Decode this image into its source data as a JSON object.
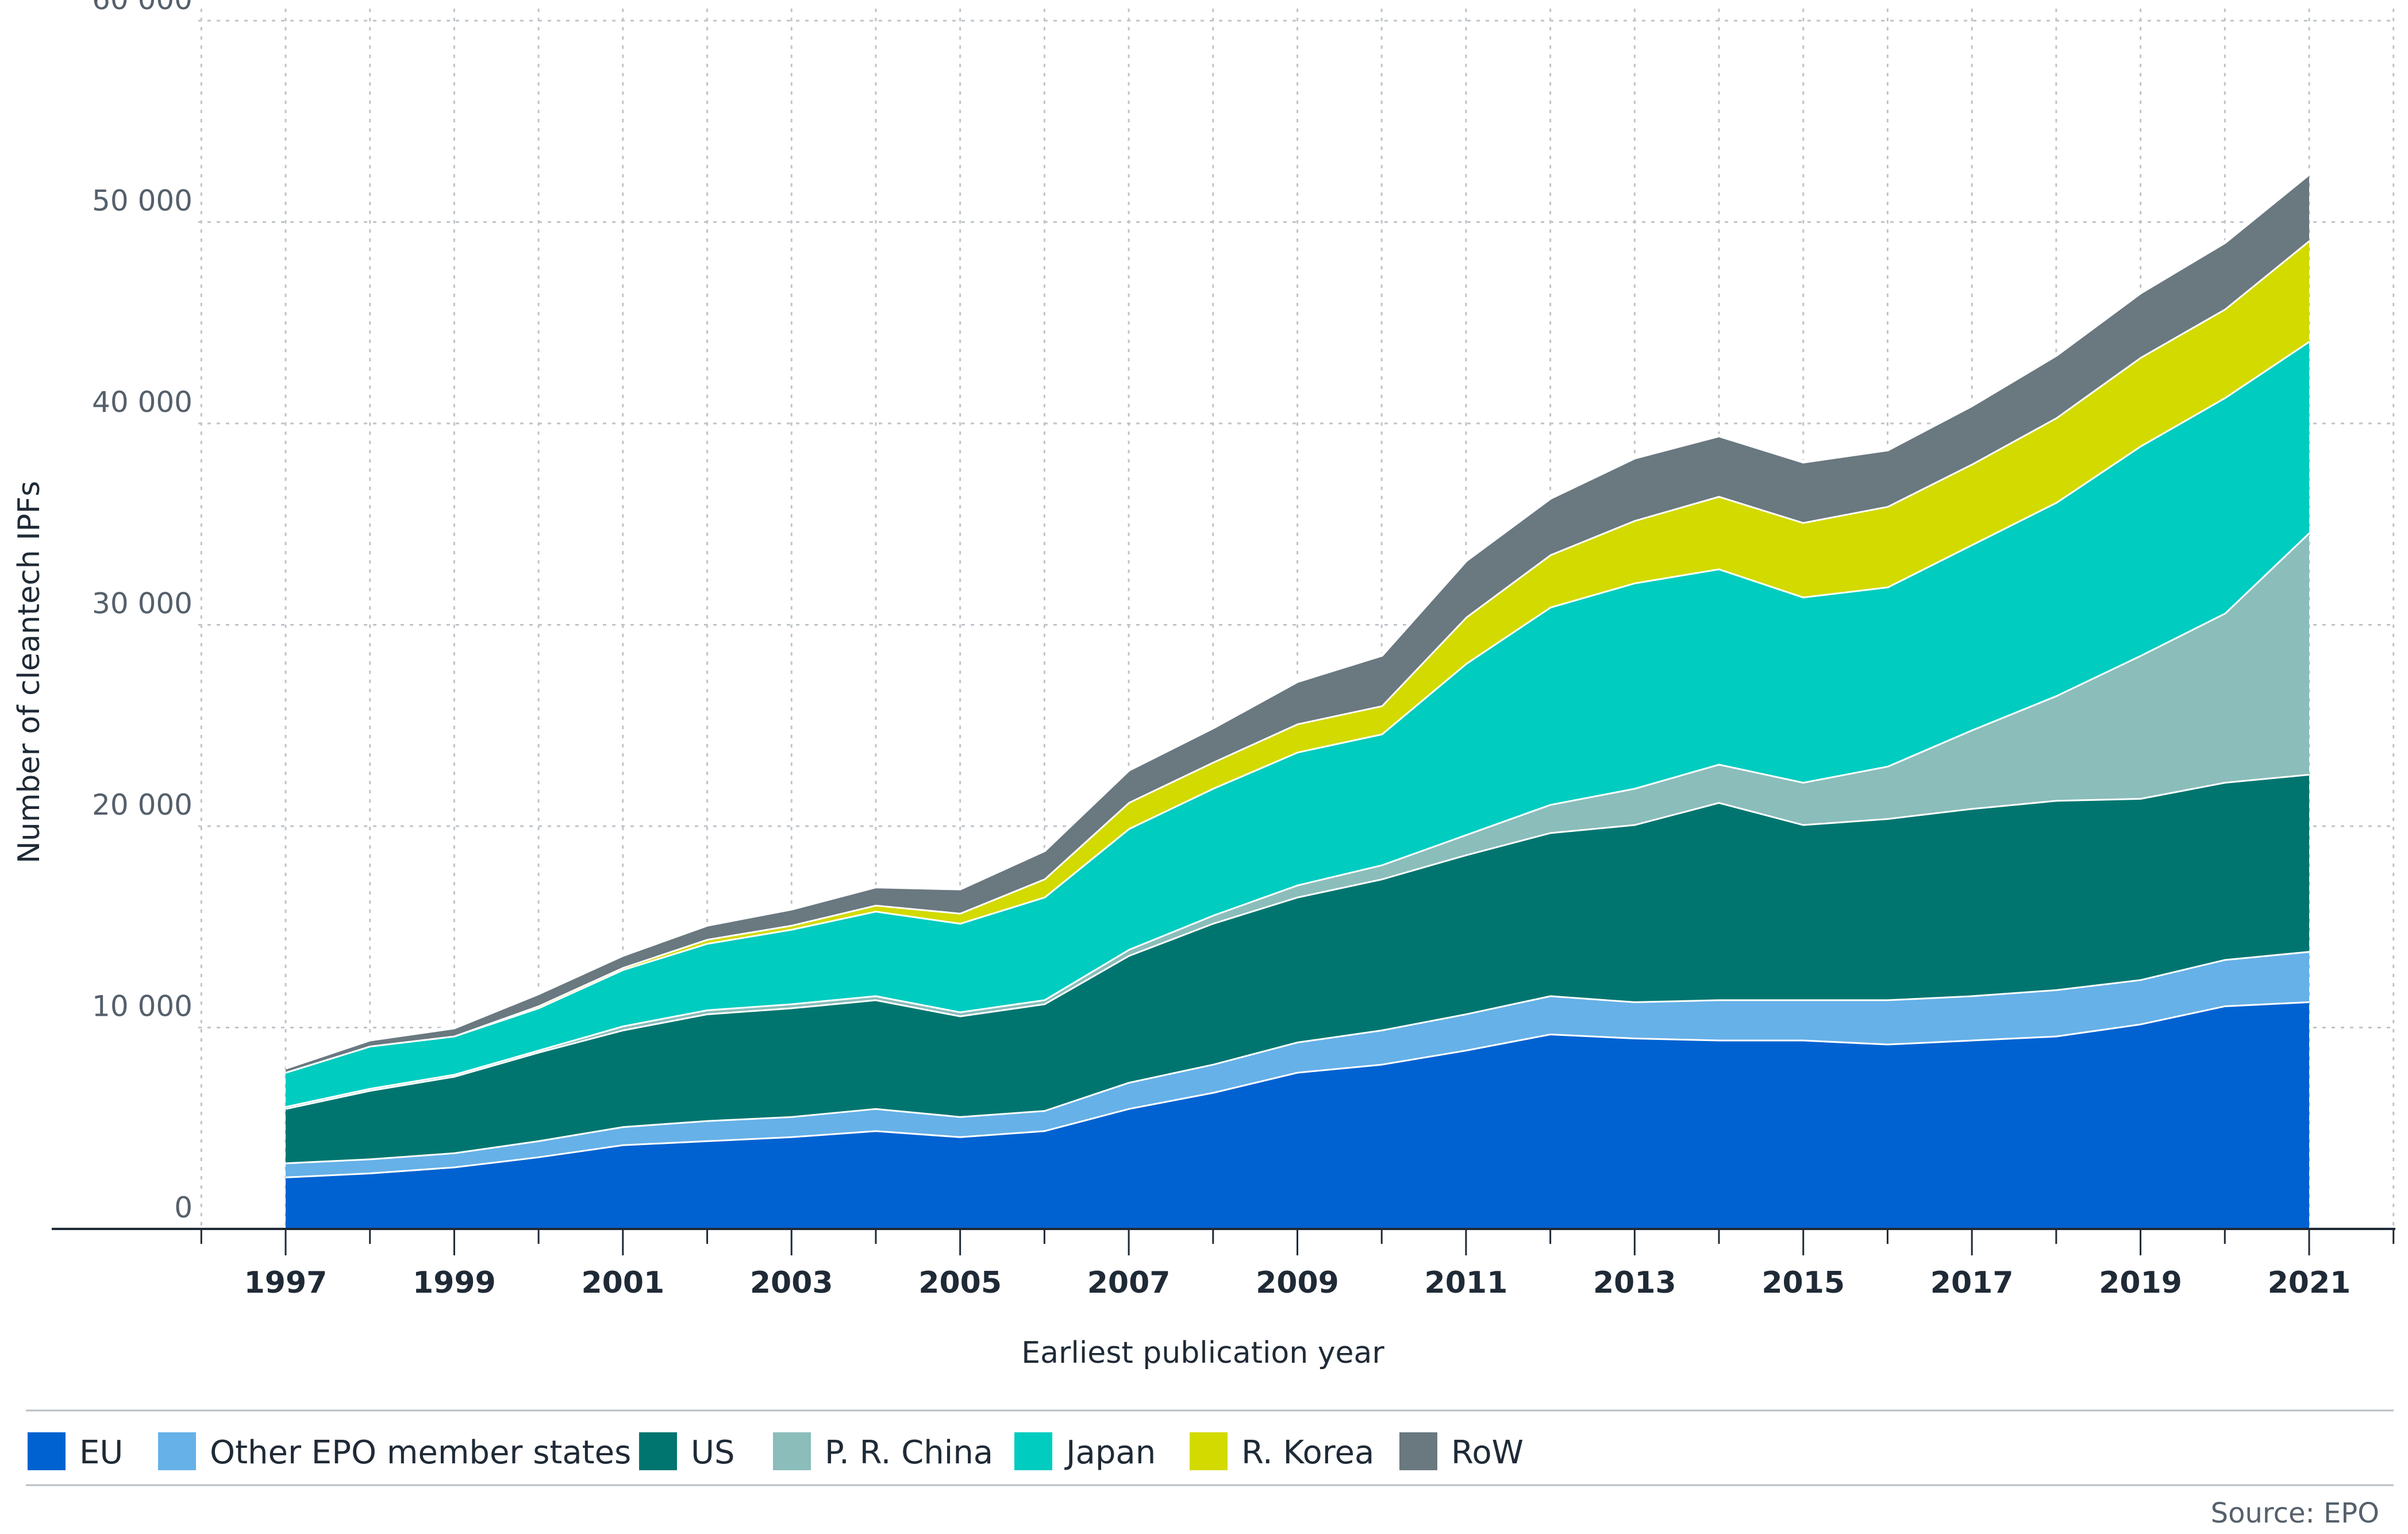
{
  "chart_data": {
    "type": "area",
    "stacked": true,
    "title": "",
    "xlabel": "Earliest publication year",
    "ylabel": "Number of cleantech IPFs",
    "x": [
      1997,
      1998,
      1999,
      2000,
      2001,
      2002,
      2003,
      2004,
      2005,
      2006,
      2007,
      2008,
      2009,
      2010,
      2011,
      2012,
      2013,
      2014,
      2015,
      2016,
      2017,
      2018,
      2019,
      2020,
      2021
    ],
    "xticks": [
      1997,
      1999,
      2001,
      2003,
      2005,
      2007,
      2009,
      2011,
      2013,
      2015,
      2017,
      2019,
      2021
    ],
    "yticks": [
      0,
      10000,
      20000,
      30000,
      40000,
      50000,
      60000
    ],
    "ytick_labels": [
      "0",
      "10 000",
      "20 000",
      "30 000",
      "40 000",
      "50 000",
      "60 000"
    ],
    "ylim": [
      0,
      60000
    ],
    "grid": true,
    "legend_position": "bottom",
    "series": [
      {
        "name": "EU",
        "color": "#0062d1",
        "values": [
          2600,
          2800,
          3100,
          3600,
          4200,
          4400,
          4600,
          4900,
          4600,
          4900,
          6000,
          6800,
          7800,
          8200,
          8900,
          9700,
          9500,
          9400,
          9400,
          9200,
          9400,
          9600,
          10200,
          11100,
          11300
        ]
      },
      {
        "name": "Other EPO member states",
        "color": "#66b1e8",
        "values": [
          700,
          700,
          700,
          800,
          900,
          1000,
          1000,
          1100,
          1000,
          1000,
          1300,
          1400,
          1500,
          1700,
          1800,
          1900,
          1800,
          2000,
          2000,
          2200,
          2200,
          2300,
          2200,
          2300,
          2500
        ]
      },
      {
        "name": "US",
        "color": "#00756f",
        "values": [
          2700,
          3400,
          3800,
          4400,
          4800,
          5300,
          5400,
          5400,
          5000,
          5300,
          6300,
          7000,
          7200,
          7500,
          7900,
          8100,
          8800,
          9800,
          8700,
          9000,
          9300,
          9400,
          9000,
          8800,
          8800
        ]
      },
      {
        "name": "P. R. China",
        "color": "#8bbdbb",
        "values": [
          100,
          100,
          100,
          100,
          200,
          200,
          200,
          200,
          200,
          200,
          300,
          400,
          600,
          700,
          1000,
          1400,
          1800,
          1900,
          2100,
          2600,
          3900,
          5200,
          7100,
          8400,
          12000
        ]
      },
      {
        "name": "Japan",
        "color": "#00ccc0",
        "values": [
          1700,
          2100,
          1900,
          2100,
          2800,
          3300,
          3700,
          4200,
          4400,
          5100,
          6000,
          6300,
          6600,
          6500,
          8500,
          9800,
          10200,
          9700,
          9200,
          8900,
          9200,
          9600,
          10400,
          10700,
          9500
        ]
      },
      {
        "name": "R. Korea",
        "color": "#d3da00",
        "values": [
          0,
          0,
          0,
          100,
          100,
          200,
          200,
          300,
          500,
          900,
          1300,
          1300,
          1400,
          1400,
          2300,
          2600,
          3100,
          3600,
          3700,
          4000,
          4000,
          4200,
          4400,
          4400,
          5000
        ]
      },
      {
        "name": "RoW",
        "color": "#6a7880",
        "values": [
          200,
          300,
          400,
          600,
          600,
          700,
          800,
          900,
          1200,
          1400,
          1600,
          1700,
          2100,
          2500,
          2800,
          2800,
          3100,
          3000,
          3000,
          2800,
          2900,
          3100,
          3200,
          3300,
          3300
        ]
      }
    ],
    "source": "Source: EPO"
  }
}
